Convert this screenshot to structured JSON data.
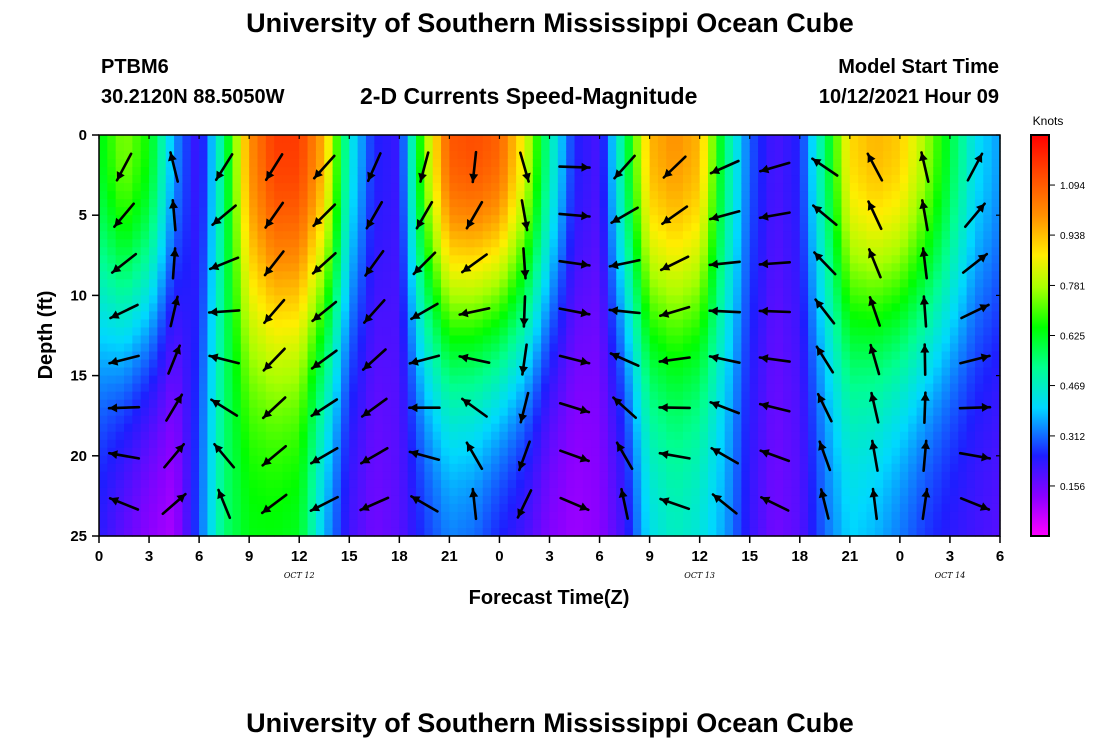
{
  "header": {
    "title_top": "University of Southern Mississippi Ocean Cube",
    "title_bottom": "University of Southern Mississippi Ocean Cube",
    "station_id": "PTBM6",
    "station_coords": "30.2120N  88.5050W",
    "plot_title": "2-D Currents Speed-Magnitude",
    "model_start_label": "Model Start Time",
    "model_start_value": "10/12/2021 Hour 09"
  },
  "chart_data": {
    "type": "heatmap",
    "title": "2-D Currents Speed-Magnitude",
    "xlabel": "Forecast Time(Z)",
    "ylabel": "Depth (ft)",
    "x_ticks": [
      "0",
      "3",
      "6",
      "9",
      "12",
      "15",
      "18",
      "21",
      "0",
      "3",
      "6",
      "9",
      "12",
      "15",
      "18",
      "21",
      "0",
      "3",
      "6"
    ],
    "x_range_hours": [
      0,
      54
    ],
    "date_labels": [
      {
        "text": "OCT 12",
        "hour": 12
      },
      {
        "text": "OCT 13",
        "hour": 36
      },
      {
        "text": "OCT 14",
        "hour": 51
      }
    ],
    "y_ticks": [
      0,
      5,
      10,
      15,
      20,
      25
    ],
    "ylim": [
      0,
      25
    ],
    "colorbar": {
      "unit": "Knots",
      "min": 0.0,
      "max": 1.25,
      "tick_values": [
        1.094,
        0.938,
        0.781,
        0.625,
        0.469,
        0.312,
        0.156
      ],
      "tick_labels": [
        "1.094",
        "0.938",
        "0.781",
        "0.625",
        "0.469",
        "0.312",
        "0.156"
      ]
    },
    "speed_profile": {
      "hours": [
        0,
        1.5,
        3,
        4.5,
        6,
        7.5,
        9,
        10.5,
        12,
        13.5,
        15,
        16.5,
        18,
        19.5,
        21,
        22.5,
        24,
        25.5,
        27,
        28.5,
        30,
        31.5,
        33,
        34.5,
        36,
        37.5,
        39,
        40.5,
        42,
        43.5,
        45,
        46.5,
        48,
        49.5,
        51,
        52.5,
        54
      ],
      "surface_knots": [
        0.62,
        0.75,
        0.65,
        0.35,
        0.2,
        0.55,
        1.0,
        1.15,
        1.15,
        0.95,
        0.45,
        0.25,
        0.22,
        0.75,
        1.1,
        1.12,
        1.08,
        0.85,
        0.5,
        0.25,
        0.2,
        0.55,
        0.95,
        1.0,
        0.95,
        0.55,
        0.3,
        0.2,
        0.25,
        0.55,
        0.9,
        0.95,
        0.92,
        0.78,
        0.6,
        0.42,
        0.35
      ],
      "bottom_knots": [
        0.22,
        0.15,
        0.1,
        0.08,
        0.3,
        0.55,
        0.62,
        0.62,
        0.6,
        0.35,
        0.2,
        0.15,
        0.18,
        0.25,
        0.3,
        0.28,
        0.22,
        0.18,
        0.12,
        0.1,
        0.12,
        0.2,
        0.4,
        0.45,
        0.42,
        0.35,
        0.22,
        0.15,
        0.18,
        0.3,
        0.38,
        0.35,
        0.3,
        0.25,
        0.22,
        0.2,
        0.18
      ],
      "decay_scale_ft": 14
    },
    "arrow_grid": {
      "hours": [
        1.5,
        4.5,
        7.5,
        10.5,
        13.5,
        16.5,
        19.5,
        22.5,
        25.5,
        28.5,
        31.5,
        34.5,
        37.5,
        40.5,
        43.5,
        46.5,
        49.5,
        52.5
      ],
      "depths_ft": [
        2,
        5,
        8,
        11,
        14,
        17,
        20,
        23
      ],
      "direction_deg": [
        200,
        340,
        200,
        210,
        220,
        200,
        185,
        170,
        160,
        90,
        210,
        220,
        240,
        250,
        300,
        330,
        345,
        20
      ],
      "direction_change_per_ft": [
        4,
        3,
        6,
        1,
        1,
        2,
        5,
        8,
        2,
        1,
        6,
        3,
        3,
        2,
        2,
        1,
        1,
        4
      ]
    }
  }
}
